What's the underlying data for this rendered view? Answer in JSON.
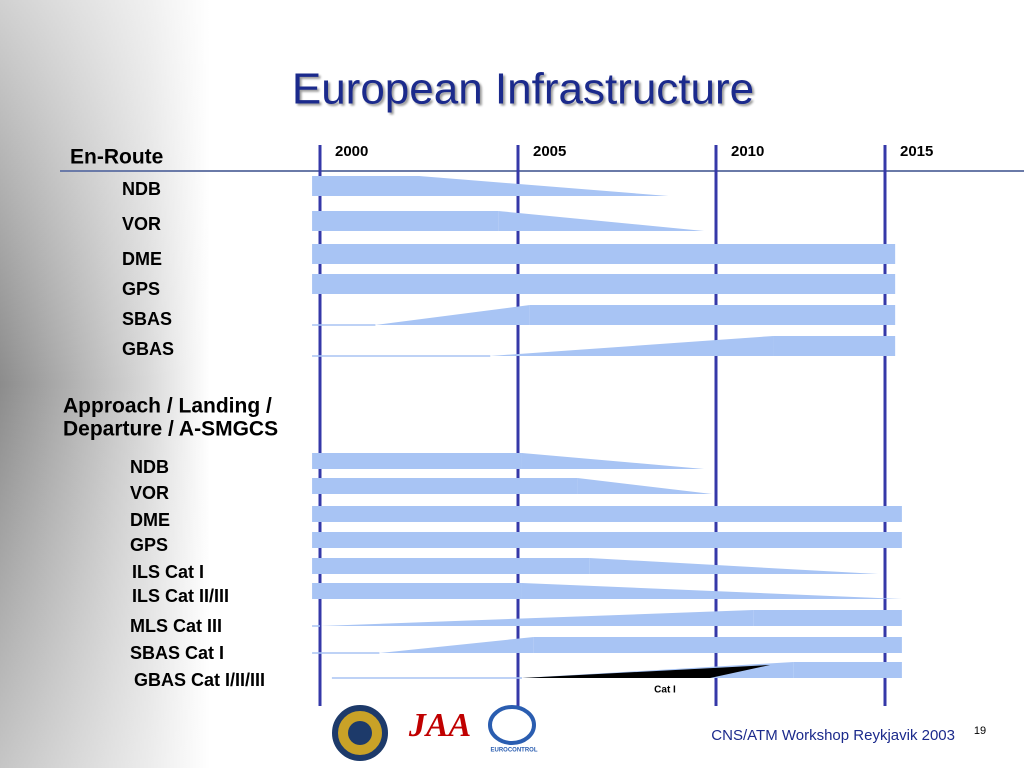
{
  "title": "European Infrastructure",
  "timeline": {
    "ticks": [
      2000,
      2005,
      2010,
      2015
    ]
  },
  "sections": [
    {
      "label": [
        "En-Route"
      ],
      "rows": [
        {
          "label": "NDB",
          "full": [
            1999.8,
            2002.5
          ],
          "taper_to": 2008.8
        },
        {
          "label": "VOR",
          "full": [
            1999.8,
            2004.5
          ],
          "taper_to": 2009.7
        },
        {
          "label": "DME",
          "full": [
            1999.8,
            2015.3
          ]
        },
        {
          "label": "GPS",
          "full": [
            1999.8,
            2015.3
          ]
        },
        {
          "label": "SBAS",
          "ramp": [
            1999.8,
            2001.4
          ],
          "full": [
            2005.3,
            2015.3
          ]
        },
        {
          "label": "GBAS",
          "ramp": [
            1999.8,
            2004.3
          ],
          "full": [
            2011.7,
            2015.3
          ]
        }
      ]
    },
    {
      "label": [
        "Approach / Landing /",
        "Departure / A-SMGCS"
      ],
      "rows": [
        {
          "label": "NDB",
          "full": [
            1999.8,
            2005.1
          ],
          "taper_to": 2009.7
        },
        {
          "label": "VOR",
          "full": [
            1999.8,
            2006.5
          ],
          "taper_to": 2009.9
        },
        {
          "label": "DME",
          "full": [
            1999.8,
            2015.5
          ]
        },
        {
          "label": "GPS",
          "full": [
            1999.8,
            2015.5
          ]
        },
        {
          "label": "ILS Cat I",
          "full": [
            1999.8,
            2006.8
          ],
          "taper_to": 2014.8
        },
        {
          "label": "ILS Cat II/III",
          "full": [
            1999.8,
            2005.1
          ],
          "taper_to": 2015.5
        },
        {
          "label": "MLS Cat III",
          "ramp": [
            1999.8,
            2000.0
          ],
          "full": [
            2011.1,
            2015.5
          ]
        },
        {
          "label": "SBAS Cat I",
          "ramp": [
            1999.8,
            2001.5
          ],
          "full": [
            2005.4,
            2015.5
          ]
        },
        {
          "label": "GBAS Cat I/II/III",
          "ramp": [
            2000.3,
            2005.1
          ],
          "full": [
            2012.3,
            2015.5
          ],
          "black_wedge": [
            2005.1,
            2011.6
          ],
          "note": "Cat I"
        }
      ]
    }
  ],
  "logos": [
    "JAA",
    "EUROCONTROL"
  ],
  "footer": "CNS/ATM Workshop  Reykjavik 2003",
  "page": "19"
}
